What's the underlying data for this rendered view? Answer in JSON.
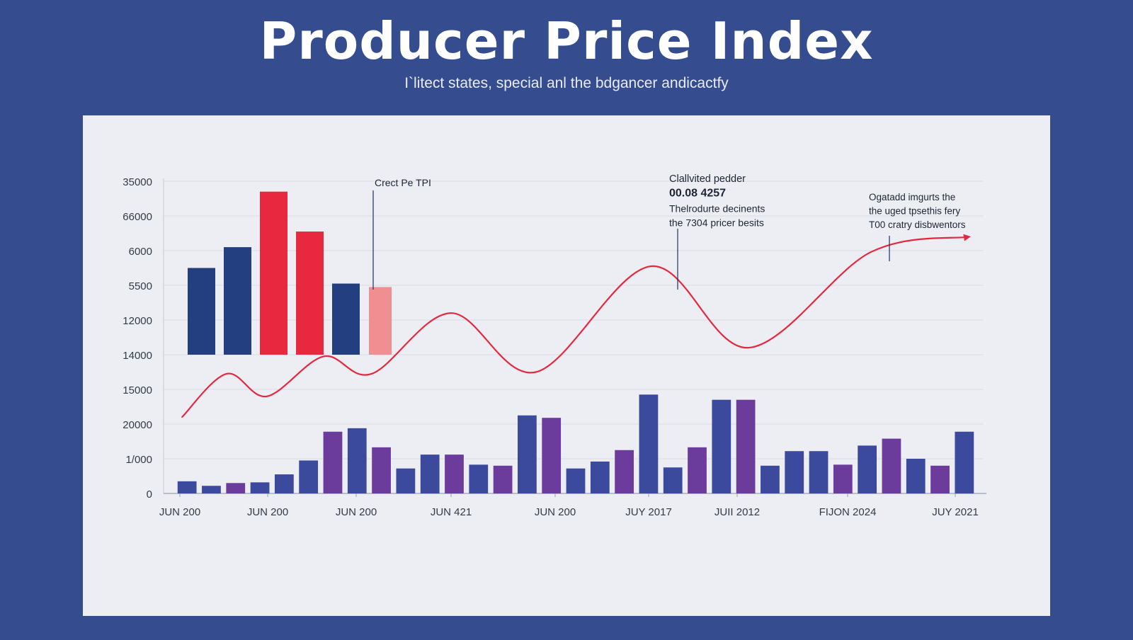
{
  "title": "Producer Price Index",
  "subtitle": "I`litect states, special anl the bdgancer andicactfy",
  "chart_data": {
    "type": "bar",
    "y_tick_labels": [
      "0",
      "1/000",
      "20000",
      "15000",
      "14000",
      "12000",
      "5500",
      "6000",
      "66000",
      "35000"
    ],
    "x_tick_labels": [
      "JUN 200",
      "JUN 200",
      "JUN 200",
      "JUN 421",
      "JUN 200",
      "JUY 2017",
      "JUII 2012",
      "FIJON 2024",
      "JUY 2021"
    ],
    "top_bars": [
      {
        "value": 2.5,
        "color": "#243f7f"
      },
      {
        "value": 3.1,
        "color": "#243f7f"
      },
      {
        "value": 4.7,
        "color": "#e8283f"
      },
      {
        "value": 3.55,
        "color": "#e8283f"
      },
      {
        "value": 2.05,
        "color": "#243f7f"
      },
      {
        "value": 1.95,
        "color": "#f08e92"
      }
    ],
    "line": {
      "color": "#e3283f",
      "values": [
        2.2,
        3.45,
        2.8,
        3.95,
        3.45,
        5.2,
        3.5,
        6.55,
        4.2,
        6.95,
        7.4
      ]
    },
    "bottom_bars": [
      {
        "value": 0.35,
        "color": "#3b4a9c"
      },
      {
        "value": 0.22,
        "color": "#3b4a9c"
      },
      {
        "value": 0.3,
        "color": "#6b3c9c"
      },
      {
        "value": 0.32,
        "color": "#3b4a9c"
      },
      {
        "value": 0.55,
        "color": "#3b4a9c"
      },
      {
        "value": 0.95,
        "color": "#3b4a9c"
      },
      {
        "value": 1.78,
        "color": "#6b3c9c"
      },
      {
        "value": 1.88,
        "color": "#3b4a9c"
      },
      {
        "value": 1.33,
        "color": "#6b3c9c"
      },
      {
        "value": 0.72,
        "color": "#3b4a9c"
      },
      {
        "value": 1.12,
        "color": "#3b4a9c"
      },
      {
        "value": 1.12,
        "color": "#6b3c9c"
      },
      {
        "value": 0.83,
        "color": "#3b4a9c"
      },
      {
        "value": 0.8,
        "color": "#6b3c9c"
      },
      {
        "value": 2.25,
        "color": "#3b4a9c"
      },
      {
        "value": 2.18,
        "color": "#6b3c9c"
      },
      {
        "value": 0.72,
        "color": "#3b4a9c"
      },
      {
        "value": 0.92,
        "color": "#3b4a9c"
      },
      {
        "value": 1.25,
        "color": "#6b3c9c"
      },
      {
        "value": 2.85,
        "color": "#3b4a9c"
      },
      {
        "value": 0.75,
        "color": "#3b4a9c"
      },
      {
        "value": 1.33,
        "color": "#6b3c9c"
      },
      {
        "value": 2.7,
        "color": "#3b4a9c"
      },
      {
        "value": 2.7,
        "color": "#6b3c9c"
      },
      {
        "value": 0.8,
        "color": "#3b4a9c"
      },
      {
        "value": 1.22,
        "color": "#3b4a9c"
      },
      {
        "value": 1.22,
        "color": "#3b4a9c"
      },
      {
        "value": 0.83,
        "color": "#6b3c9c"
      },
      {
        "value": 1.38,
        "color": "#3b4a9c"
      },
      {
        "value": 1.58,
        "color": "#6b3c9c"
      },
      {
        "value": 1.0,
        "color": "#3b4a9c"
      },
      {
        "value": 0.8,
        "color": "#6b3c9c"
      },
      {
        "value": 1.78,
        "color": "#3b4a9c"
      }
    ],
    "annotations": [
      {
        "lines": [
          "Crect Pe TPI"
        ]
      },
      {
        "lines": [
          "Clallvited pedder",
          "00.08 4257",
          "Thelrodurte decinents",
          "the 7304 pricer besits"
        ]
      },
      {
        "lines": [
          "Ogatadd imgurts the",
          "the uged tpsethis fery",
          "T00 cratry disbwentors"
        ]
      }
    ],
    "grid": true
  }
}
